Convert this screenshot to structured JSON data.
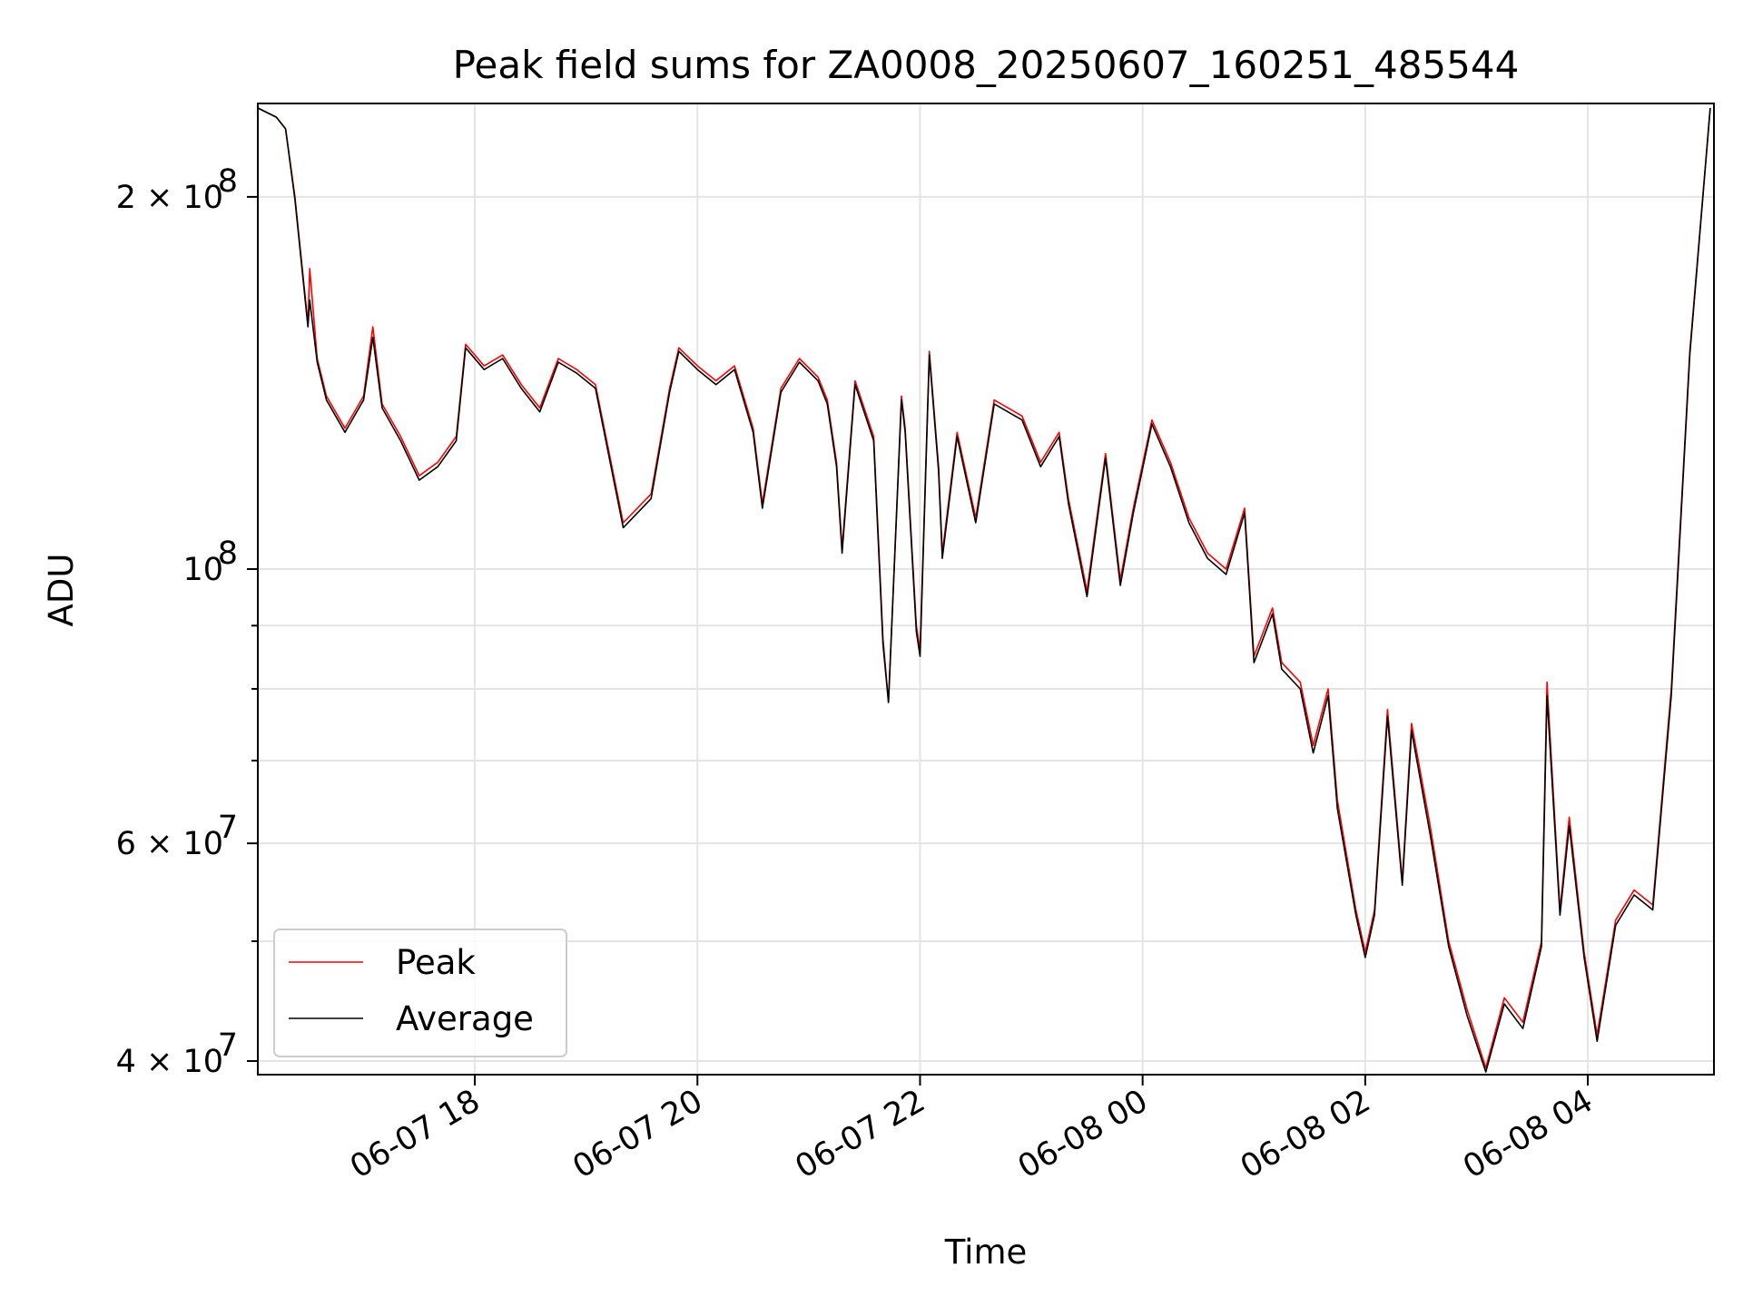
{
  "chart_data": {
    "type": "line",
    "title": "Peak field sums for ZA0008_20250607_160251_485544",
    "xlabel": "Time",
    "ylabel": "ADU",
    "y_scale": "log",
    "ylim": [
      39000000,
      238000000
    ],
    "xlim": [
      "06-07 16:03",
      "06-08 05:08"
    ],
    "grid": true,
    "legend_position": "lower-left",
    "x_ticks": [
      {
        "label": "06-07 18",
        "value": "06-07 18:00"
      },
      {
        "label": "06-07 20",
        "value": "06-07 20:00"
      },
      {
        "label": "06-07 22",
        "value": "06-07 22:00"
      },
      {
        "label": "06-08 00",
        "value": "06-08 00:00"
      },
      {
        "label": "06-08 02",
        "value": "06-08 02:00"
      },
      {
        "label": "06-08 04",
        "value": "06-08 04:00"
      }
    ],
    "y_major_ticks": [
      {
        "label_base": "4 × 10",
        "label_exp": "7",
        "value": 40000000
      },
      {
        "label_base": "6 × 10",
        "label_exp": "7",
        "value": 60000000
      },
      {
        "label_base": "10",
        "label_exp": "8",
        "value": 100000000
      },
      {
        "label_base": "2 × 10",
        "label_exp": "8",
        "value": 200000000
      }
    ],
    "y_minor_ticks": [
      50000000,
      70000000,
      80000000,
      90000000
    ],
    "series": [
      {
        "name": "Peak",
        "color": "#ff0000",
        "points": [
          [
            "06-07 16:03",
            236000000
          ],
          [
            "06-07 16:13",
            232000000
          ],
          [
            "06-07 16:18",
            227000000
          ],
          [
            "06-07 16:23",
            200000000
          ],
          [
            "06-07 16:30",
            158000000
          ],
          [
            "06-07 16:31",
            175000000
          ],
          [
            "06-07 16:35",
            148000000
          ],
          [
            "06-07 16:40",
            138000000
          ],
          [
            "06-07 16:50",
            130000000
          ],
          [
            "06-07 17:00",
            138000000
          ],
          [
            "06-07 17:05",
            157000000
          ],
          [
            "06-07 17:10",
            136000000
          ],
          [
            "06-07 17:20",
            128000000
          ],
          [
            "06-07 17:30",
            119000000
          ],
          [
            "06-07 17:40",
            122000000
          ],
          [
            "06-07 17:50",
            128000000
          ],
          [
            "06-07 17:55",
            152000000
          ],
          [
            "06-07 18:05",
            146000000
          ],
          [
            "06-07 18:15",
            149000000
          ],
          [
            "06-07 18:25",
            141000000
          ],
          [
            "06-07 18:35",
            135000000
          ],
          [
            "06-07 18:45",
            148000000
          ],
          [
            "06-07 18:55",
            145000000
          ],
          [
            "06-07 19:05",
            141000000
          ],
          [
            "06-07 19:20",
            109000000
          ],
          [
            "06-07 19:35",
            115000000
          ],
          [
            "06-07 19:45",
            140000000
          ],
          [
            "06-07 19:50",
            151000000
          ],
          [
            "06-07 20:00",
            146000000
          ],
          [
            "06-07 20:10",
            142000000
          ],
          [
            "06-07 20:20",
            146000000
          ],
          [
            "06-07 20:30",
            130000000
          ],
          [
            "06-07 20:35",
            113000000
          ],
          [
            "06-07 20:45",
            140000000
          ],
          [
            "06-07 20:55",
            148000000
          ],
          [
            "06-07 21:05",
            143000000
          ],
          [
            "06-07 21:10",
            137000000
          ],
          [
            "06-07 21:15",
            122000000
          ],
          [
            "06-07 21:18",
            104000000
          ],
          [
            "06-07 21:25",
            142000000
          ],
          [
            "06-07 21:35",
            128000000
          ],
          [
            "06-07 21:40",
            88000000
          ],
          [
            "06-07 21:43",
            78000000
          ],
          [
            "06-07 21:50",
            138000000
          ],
          [
            "06-07 21:58",
            90000000
          ],
          [
            "06-07 22:00",
            86000000
          ],
          [
            "06-07 21:52",
            130000000
          ],
          [
            "06-07 22:05",
            150000000
          ],
          [
            "06-07 22:10",
            121000000
          ],
          [
            "06-07 22:12",
            103000000
          ],
          [
            "06-07 22:20",
            129000000
          ],
          [
            "06-07 22:30",
            110000000
          ],
          [
            "06-07 22:40",
            137000000
          ],
          [
            "06-07 22:55",
            133000000
          ],
          [
            "06-07 23:05",
            122000000
          ],
          [
            "06-07 23:15",
            129000000
          ],
          [
            "06-07 23:20",
            114000000
          ],
          [
            "06-07 23:30",
            96000000
          ],
          [
            "06-07 23:40",
            124000000
          ],
          [
            "06-07 23:48",
            98000000
          ],
          [
            "06-07 23:55",
            112000000
          ],
          [
            "06-08 00:05",
            132000000
          ],
          [
            "06-08 00:15",
            122000000
          ],
          [
            "06-08 00:25",
            110000000
          ],
          [
            "06-08 00:35",
            103000000
          ],
          [
            "06-08 00:45",
            100000000
          ],
          [
            "06-08 00:55",
            112000000
          ],
          [
            "06-08 01:00",
            85000000
          ],
          [
            "06-08 01:10",
            93000000
          ],
          [
            "06-08 01:15",
            84000000
          ],
          [
            "06-08 01:25",
            81000000
          ],
          [
            "06-08 01:32",
            72000000
          ],
          [
            "06-08 01:40",
            80000000
          ],
          [
            "06-08 01:45",
            65000000
          ],
          [
            "06-08 01:55",
            53000000
          ],
          [
            "06-08 02:00",
            49000000
          ],
          [
            "06-08 02:05",
            53000000
          ],
          [
            "06-08 02:12",
            77000000
          ],
          [
            "06-08 02:20",
            56000000
          ],
          [
            "06-08 02:25",
            75000000
          ],
          [
            "06-08 02:35",
            62000000
          ],
          [
            "06-08 02:45",
            50000000
          ],
          [
            "06-08 02:55",
            44000000
          ],
          [
            "06-08 03:05",
            39500000
          ],
          [
            "06-08 03:15",
            45000000
          ],
          [
            "06-08 03:25",
            43000000
          ],
          [
            "06-08 03:35",
            50000000
          ],
          [
            "06-08 03:38",
            81000000
          ],
          [
            "06-08 03:45",
            53000000
          ],
          [
            "06-08 03:50",
            63000000
          ],
          [
            "06-08 03:58",
            49000000
          ],
          [
            "06-08 04:05",
            42000000
          ],
          [
            "06-08 04:15",
            52000000
          ],
          [
            "06-08 04:25",
            55000000
          ],
          [
            "06-08 04:35",
            53500000
          ],
          [
            "06-08 04:45",
            80000000
          ],
          [
            "06-08 04:55",
            150000000
          ],
          [
            "06-08 05:06",
            236000000
          ]
        ]
      },
      {
        "name": "Average",
        "color": "#000000",
        "points": [
          [
            "06-07 16:03",
            236000000
          ],
          [
            "06-07 16:13",
            232000000
          ],
          [
            "06-07 16:18",
            227000000
          ],
          [
            "06-07 16:23",
            199000000
          ],
          [
            "06-07 16:30",
            157000000
          ],
          [
            "06-07 16:31",
            165000000
          ],
          [
            "06-07 16:35",
            147000000
          ],
          [
            "06-07 16:40",
            137000000
          ],
          [
            "06-07 16:50",
            129000000
          ],
          [
            "06-07 17:00",
            137000000
          ],
          [
            "06-07 17:05",
            154000000
          ],
          [
            "06-07 17:10",
            135000000
          ],
          [
            "06-07 17:20",
            127000000
          ],
          [
            "06-07 17:30",
            118000000
          ],
          [
            "06-07 17:40",
            121000000
          ],
          [
            "06-07 17:50",
            127000000
          ],
          [
            "06-07 17:55",
            151000000
          ],
          [
            "06-07 18:05",
            145000000
          ],
          [
            "06-07 18:15",
            148000000
          ],
          [
            "06-07 18:25",
            140000000
          ],
          [
            "06-07 18:35",
            134000000
          ],
          [
            "06-07 18:45",
            147000000
          ],
          [
            "06-07 18:55",
            144000000
          ],
          [
            "06-07 19:05",
            140000000
          ],
          [
            "06-07 19:20",
            108000000
          ],
          [
            "06-07 19:35",
            114000000
          ],
          [
            "06-07 19:45",
            139000000
          ],
          [
            "06-07 19:50",
            150000000
          ],
          [
            "06-07 20:00",
            145000000
          ],
          [
            "06-07 20:10",
            141000000
          ],
          [
            "06-07 20:20",
            145000000
          ],
          [
            "06-07 20:30",
            129000000
          ],
          [
            "06-07 20:35",
            112000000
          ],
          [
            "06-07 20:45",
            139000000
          ],
          [
            "06-07 20:55",
            147000000
          ],
          [
            "06-07 21:05",
            142000000
          ],
          [
            "06-07 21:10",
            136000000
          ],
          [
            "06-07 21:15",
            121000000
          ],
          [
            "06-07 21:18",
            103000000
          ],
          [
            "06-07 21:25",
            141000000
          ],
          [
            "06-07 21:35",
            127000000
          ],
          [
            "06-07 21:40",
            87000000
          ],
          [
            "06-07 21:43",
            78000000
          ],
          [
            "06-07 21:50",
            137000000
          ],
          [
            "06-07 21:58",
            89000000
          ],
          [
            "06-07 22:00",
            85000000
          ],
          [
            "06-07 21:52",
            129000000
          ],
          [
            "06-07 22:05",
            149000000
          ],
          [
            "06-07 22:10",
            120000000
          ],
          [
            "06-07 22:12",
            102000000
          ],
          [
            "06-07 22:20",
            128000000
          ],
          [
            "06-07 22:30",
            109000000
          ],
          [
            "06-07 22:40",
            136000000
          ],
          [
            "06-07 22:55",
            132000000
          ],
          [
            "06-07 23:05",
            121000000
          ],
          [
            "06-07 23:15",
            128000000
          ],
          [
            "06-07 23:20",
            113000000
          ],
          [
            "06-07 23:30",
            95000000
          ],
          [
            "06-07 23:40",
            123000000
          ],
          [
            "06-07 23:48",
            97000000
          ],
          [
            "06-07 23:55",
            111000000
          ],
          [
            "06-08 00:05",
            131000000
          ],
          [
            "06-08 00:15",
            121000000
          ],
          [
            "06-08 00:25",
            109000000
          ],
          [
            "06-08 00:35",
            102000000
          ],
          [
            "06-08 00:45",
            99000000
          ],
          [
            "06-08 00:55",
            111000000
          ],
          [
            "06-08 01:00",
            84000000
          ],
          [
            "06-08 01:10",
            92000000
          ],
          [
            "06-08 01:15",
            83000000
          ],
          [
            "06-08 01:25",
            80000000
          ],
          [
            "06-08 01:32",
            71000000
          ],
          [
            "06-08 01:40",
            79000000
          ],
          [
            "06-08 01:45",
            64000000
          ],
          [
            "06-08 01:55",
            52500000
          ],
          [
            "06-08 02:00",
            48500000
          ],
          [
            "06-08 02:05",
            52500000
          ],
          [
            "06-08 02:12",
            76000000
          ],
          [
            "06-08 02:20",
            55500000
          ],
          [
            "06-08 02:25",
            74000000
          ],
          [
            "06-08 02:35",
            61000000
          ],
          [
            "06-08 02:45",
            49500000
          ],
          [
            "06-08 02:55",
            43500000
          ],
          [
            "06-08 03:05",
            39200000
          ],
          [
            "06-08 03:15",
            44500000
          ],
          [
            "06-08 03:25",
            42500000
          ],
          [
            "06-08 03:35",
            49500000
          ],
          [
            "06-08 03:38",
            79000000
          ],
          [
            "06-08 03:45",
            52500000
          ],
          [
            "06-08 03:50",
            62000000
          ],
          [
            "06-08 03:58",
            48500000
          ],
          [
            "06-08 04:05",
            41500000
          ],
          [
            "06-08 04:15",
            51500000
          ],
          [
            "06-08 04:25",
            54500000
          ],
          [
            "06-08 04:35",
            53000000
          ],
          [
            "06-08 04:45",
            79000000
          ],
          [
            "06-08 04:55",
            149000000
          ],
          [
            "06-08 05:06",
            236000000
          ]
        ]
      }
    ]
  }
}
